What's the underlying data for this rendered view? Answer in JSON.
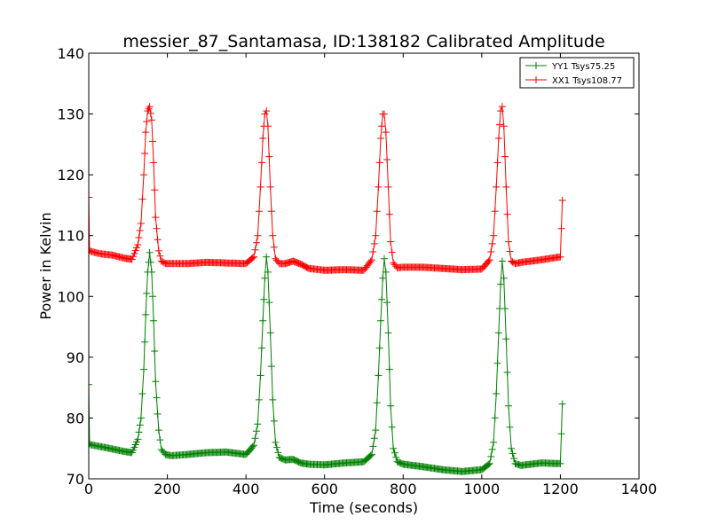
{
  "chart_data": {
    "type": "line",
    "title": "messier_87_Santamasa, ID:138182 Calibrated Amplitude",
    "xlabel": "Time (seconds)",
    "ylabel": "Power in Kelvin",
    "xlim": [
      0,
      1400
    ],
    "ylim": [
      70,
      140
    ],
    "xticks": [
      0,
      200,
      400,
      600,
      800,
      1000,
      1200,
      1400
    ],
    "yticks": [
      70,
      80,
      90,
      100,
      110,
      120,
      130,
      140
    ],
    "grid": false,
    "legend_position": "top-right",
    "marker": "+",
    "series": [
      {
        "name": "YY1 Tsys75.25",
        "color": "#008000",
        "x": [
          0,
          2,
          5,
          30,
          60,
          90,
          110,
          125,
          133,
          140,
          145,
          150,
          155,
          160,
          165,
          170,
          178,
          185,
          195,
          210,
          250,
          300,
          350,
          400,
          420,
          430,
          437,
          443,
          448,
          452,
          456,
          462,
          468,
          475,
          485,
          500,
          520,
          540,
          560,
          600,
          650,
          700,
          720,
          730,
          737,
          743,
          748,
          752,
          756,
          762,
          768,
          775,
          785,
          800,
          850,
          900,
          950,
          1000,
          1020,
          1030,
          1037,
          1043,
          1048,
          1052,
          1056,
          1062,
          1068,
          1075,
          1085,
          1100,
          1150,
          1200,
          1205
        ],
        "y": [
          85.5,
          75.8,
          75.6,
          75.3,
          74.9,
          74.5,
          74.3,
          76.5,
          80,
          88,
          97,
          104,
          107.2,
          104,
          96,
          86,
          78,
          74.8,
          74,
          73.8,
          74,
          74.3,
          74.4,
          74,
          75.5,
          79,
          87,
          96,
          103,
          106.5,
          104,
          94,
          83,
          76,
          73.5,
          73.1,
          73.2,
          72.6,
          72.4,
          72.3,
          72.6,
          72.8,
          74,
          78,
          87,
          96,
          103,
          106.2,
          104,
          94,
          82,
          75,
          72.8,
          72.4,
          72,
          71.5,
          71.2,
          71.5,
          72.5,
          76,
          84,
          94,
          102,
          105.8,
          103,
          93,
          82,
          75,
          72.5,
          72.2,
          72.6,
          72.5,
          82.3
        ]
      },
      {
        "name": "XX1 Tsys108.77",
        "color": "#ff0000",
        "x": [
          0,
          2,
          5,
          30,
          60,
          90,
          110,
          125,
          133,
          140,
          145,
          150,
          155,
          160,
          165,
          170,
          178,
          185,
          195,
          210,
          250,
          300,
          350,
          400,
          420,
          430,
          437,
          443,
          448,
          452,
          456,
          462,
          468,
          475,
          485,
          500,
          520,
          540,
          560,
          600,
          650,
          700,
          720,
          730,
          737,
          743,
          748,
          752,
          756,
          762,
          768,
          775,
          785,
          800,
          850,
          900,
          950,
          1000,
          1020,
          1030,
          1037,
          1043,
          1048,
          1052,
          1056,
          1062,
          1068,
          1075,
          1085,
          1100,
          1150,
          1200,
          1205
        ],
        "y": [
          116.3,
          107.6,
          107.4,
          107,
          106.8,
          106.3,
          106.1,
          108.5,
          112,
          120,
          127,
          130.5,
          131.2,
          129,
          122,
          113,
          107.5,
          105.8,
          105.4,
          105.4,
          105.4,
          105.6,
          105.5,
          105.4,
          106.5,
          110,
          118,
          126,
          130,
          130.5,
          128,
          118,
          110,
          106.2,
          105.4,
          105.4,
          105.8,
          105.3,
          104.6,
          104.3,
          104.4,
          104.3,
          106,
          110,
          118,
          126,
          130,
          130,
          127,
          118,
          109,
          105.5,
          104.7,
          104.8,
          104.8,
          104.6,
          104.4,
          104.5,
          106,
          110,
          118,
          126,
          130.5,
          131.2,
          128,
          118,
          109,
          105.8,
          105.4,
          105.6,
          106,
          106.5,
          115.8
        ]
      }
    ]
  }
}
